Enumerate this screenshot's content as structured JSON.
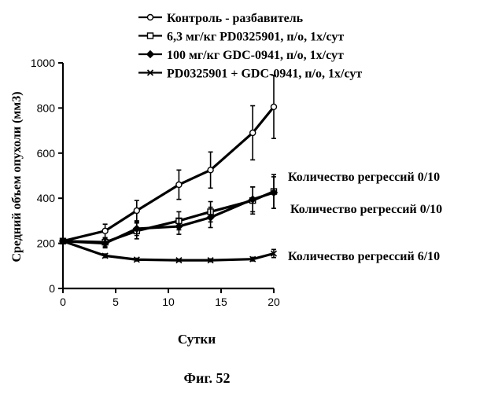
{
  "chart_data": {
    "type": "line",
    "title": "",
    "xlabel": "Сутки",
    "ylabel": "Средний объем опухоли (мм3)",
    "xlim": [
      0,
      20
    ],
    "ylim": [
      0,
      1000
    ],
    "x_ticks": [
      0,
      5,
      10,
      15,
      20
    ],
    "y_ticks": [
      0,
      200,
      400,
      600,
      800,
      1000
    ],
    "grid": false,
    "legend_position": "top",
    "series": [
      {
        "name": "Контроль - разбавитель",
        "marker": "circle",
        "x": [
          0,
          4,
          7,
          11,
          14,
          18,
          20
        ],
        "y": [
          210,
          255,
          345,
          460,
          525,
          690,
          805
        ],
        "err": [
          15,
          30,
          45,
          65,
          80,
          120,
          140
        ],
        "annotation": ""
      },
      {
        "name": "6,3 мг/кг PD0325901, п/о, 1х/сут",
        "marker": "square",
        "x": [
          0,
          4,
          7,
          11,
          14,
          18,
          20
        ],
        "y": [
          210,
          205,
          255,
          300,
          340,
          390,
          430
        ],
        "err": [
          15,
          20,
          35,
          40,
          45,
          60,
          75
        ],
        "annotation": "Количество регрессий 0/10"
      },
      {
        "name": "100 мг/кг GDC-0941, п/о, 1х/сут",
        "marker": "diamond",
        "x": [
          0,
          4,
          7,
          11,
          14,
          18,
          20
        ],
        "y": [
          210,
          200,
          265,
          275,
          315,
          395,
          425
        ],
        "err": [
          15,
          20,
          30,
          35,
          45,
          55,
          70
        ],
        "annotation": "Количество регрессий 0/10"
      },
      {
        "name": "PD0325901 + GDC-0941, п/о, 1х/сут",
        "marker": "x",
        "x": [
          0,
          4,
          7,
          11,
          14,
          18,
          20
        ],
        "y": [
          210,
          145,
          128,
          125,
          125,
          130,
          155
        ],
        "err": [
          10,
          8,
          6,
          5,
          6,
          8,
          18
        ],
        "annotation": "Количество регрессий 6/10"
      }
    ]
  },
  "figure_caption": "Фиг. 52"
}
